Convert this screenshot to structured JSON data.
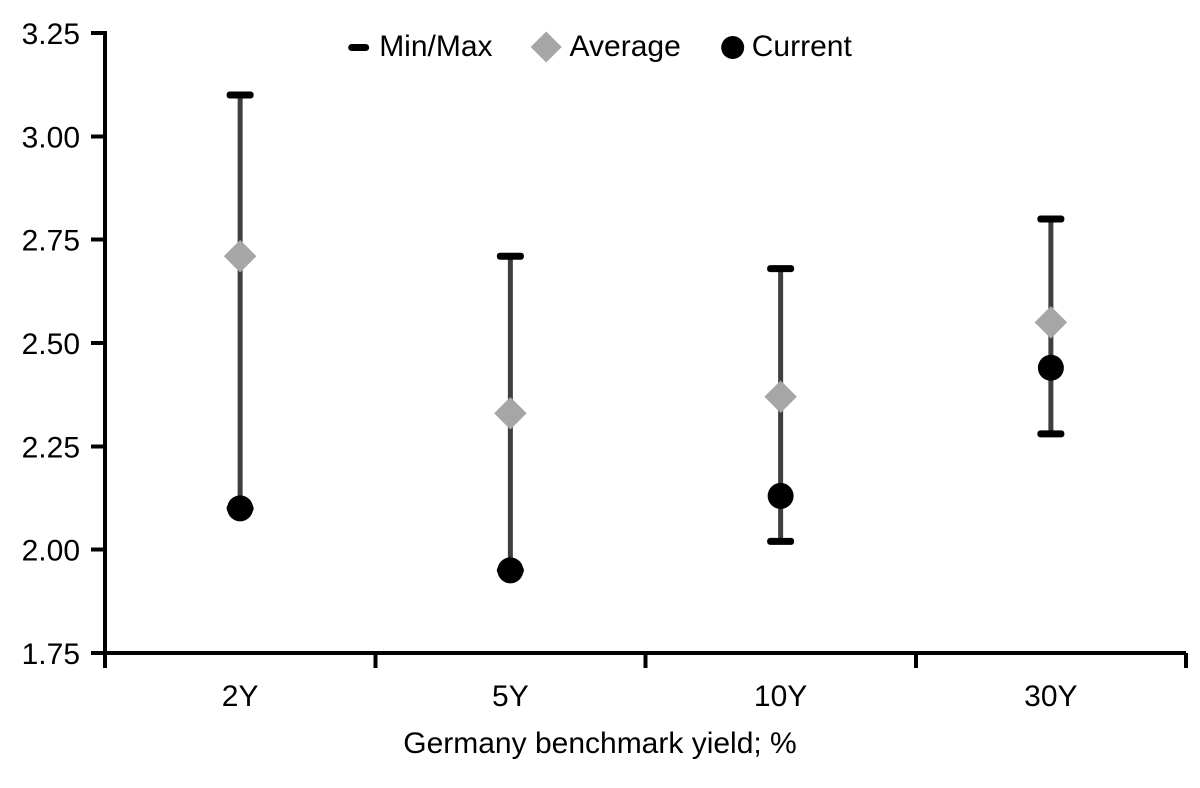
{
  "chart_data": {
    "type": "scatter",
    "subtype": "min-max-range",
    "title": "",
    "xlabel": "Germany benchmark yield; %",
    "ylabel": "",
    "ylim": [
      1.75,
      3.25
    ],
    "y_ticks": [
      3.25,
      3.0,
      2.75,
      2.5,
      2.25,
      2.0,
      1.75
    ],
    "y_tick_labels": [
      "3.25",
      "3.00",
      "2.75",
      "2.50",
      "2.25",
      "2.00",
      "1.75"
    ],
    "categories": [
      "2Y",
      "5Y",
      "10Y",
      "30Y"
    ],
    "grid": false,
    "legend_position": "top-center",
    "colors": {
      "axis": "#000000",
      "range_line": "#3f3f3f",
      "cap": "#000000",
      "average": "#a6a6a6",
      "current": "#000000",
      "background": "#ffffff",
      "text": "#000000"
    },
    "series": [
      {
        "name": "Min/Max",
        "marker": "dash",
        "color": "#000000",
        "max": [
          3.1,
          2.71,
          2.68,
          2.8
        ],
        "min": [
          2.1,
          1.95,
          2.02,
          2.28
        ]
      },
      {
        "name": "Average",
        "marker": "diamond",
        "color": "#a6a6a6",
        "values": [
          2.71,
          2.33,
          2.37,
          2.55
        ]
      },
      {
        "name": "Current",
        "marker": "circle",
        "color": "#000000",
        "values": [
          2.1,
          1.95,
          2.13,
          2.44
        ]
      }
    ]
  }
}
